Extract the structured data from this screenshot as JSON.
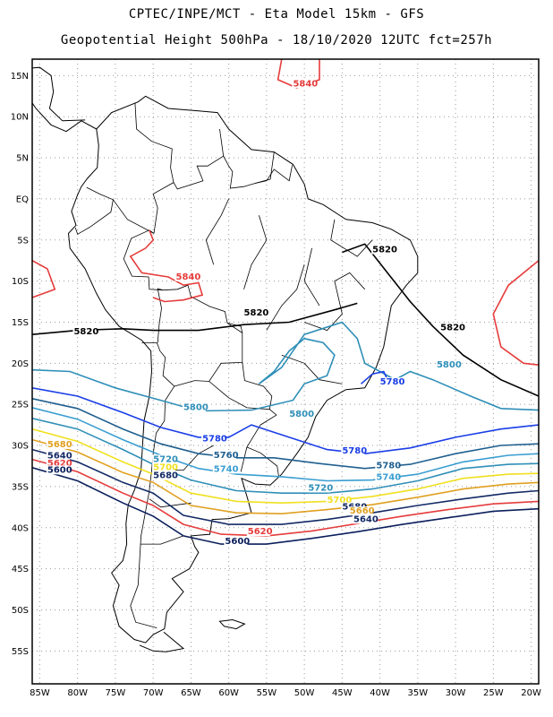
{
  "header": {
    "line1": "CPTEC/INPE/MCT -  Eta Model 15km - GFS",
    "line2": "Geopotential Height 500hPa - 18/10/2020 12UTC fct=257h"
  },
  "axes": {
    "lat_labels": [
      "15N",
      "10N",
      "5N",
      "EQ",
      "5S",
      "10S",
      "15S",
      "20S",
      "25S",
      "30S",
      "35S",
      "40S",
      "45S",
      "50S",
      "55S"
    ],
    "lat_values": [
      15,
      10,
      5,
      0,
      -5,
      -10,
      -15,
      -20,
      -25,
      -30,
      -35,
      -40,
      -45,
      -50,
      -55
    ],
    "lon_labels": [
      "85W",
      "80W",
      "75W",
      "70W",
      "65W",
      "60W",
      "55W",
      "50W",
      "45W",
      "40W",
      "35W",
      "30W",
      "25W",
      "20W"
    ],
    "lon_values": [
      -85,
      -80,
      -75,
      -70,
      -65,
      -60,
      -55,
      -50,
      -45,
      -40,
      -35,
      -30,
      -25,
      -20
    ],
    "lon_range": [
      -86,
      -19
    ],
    "lat_range": [
      -59,
      17
    ],
    "grid": "dotted"
  },
  "contour_levels": [
    {
      "value": 5840,
      "label": "5840",
      "color": "#e63c3c"
    },
    {
      "value": 5820,
      "label": "5820",
      "color": "#000000"
    },
    {
      "value": 5800,
      "label": "5800",
      "color": "#2f8fb8"
    },
    {
      "value": 5780,
      "label": "5780",
      "color": "#1a3ee6"
    },
    {
      "value": 5760,
      "label": "5760",
      "color": "#1f5f8f"
    },
    {
      "value": 5740,
      "label": "5740",
      "color": "#3a9ed1"
    },
    {
      "value": 5720,
      "label": "5720",
      "color": "#2f8fb8"
    },
    {
      "value": 5700,
      "label": "5700",
      "color": "#f0e020"
    },
    {
      "value": 5680,
      "label": "5680",
      "color": "#e0a020"
    },
    {
      "value": 5660,
      "label": "5660",
      "color": "#e0a020"
    },
    {
      "value": 5640,
      "label": "5640",
      "color": "#132a66"
    },
    {
      "value": 5620,
      "label": "5620",
      "color": "#e63c3c"
    },
    {
      "value": 5600,
      "label": "5600",
      "color": "#0a1f5c"
    }
  ],
  "contour_labels": [
    {
      "text": "5840",
      "lon": -51.5,
      "lat": 13.7,
      "color": "#e63c3c"
    },
    {
      "text": "5840",
      "lon": -67.0,
      "lat": -9.8,
      "color": "#e63c3c"
    },
    {
      "text": "5820",
      "lon": -41.0,
      "lat": -6.5,
      "color": "#000000"
    },
    {
      "text": "5820",
      "lon": -58.0,
      "lat": -14.2,
      "color": "#000000"
    },
    {
      "text": "5820",
      "lon": -80.5,
      "lat": -16.5,
      "color": "#000000"
    },
    {
      "text": "5820",
      "lon": -32.0,
      "lat": -16.0,
      "color": "#000000"
    },
    {
      "text": "5800",
      "lon": -32.5,
      "lat": -20.5,
      "color": "#2f8fb8"
    },
    {
      "text": "5800",
      "lon": -66.0,
      "lat": -25.7,
      "color": "#2f8fb8"
    },
    {
      "text": "5800",
      "lon": -52.0,
      "lat": -26.5,
      "color": "#2f8fb8"
    },
    {
      "text": "5780",
      "lon": -40.0,
      "lat": -22.6,
      "color": "#1a3ee6"
    },
    {
      "text": "5780",
      "lon": -63.5,
      "lat": -29.5,
      "color": "#1a3ee6"
    },
    {
      "text": "5780",
      "lon": -45.0,
      "lat": -31.0,
      "color": "#1a3ee6"
    },
    {
      "text": "5780",
      "lon": -40.5,
      "lat": -32.8,
      "color": "#1f5f8f"
    },
    {
      "text": "5760",
      "lon": -62.0,
      "lat": -31.5,
      "color": "#1f5f8f"
    },
    {
      "text": "5740",
      "lon": -62.0,
      "lat": -33.2,
      "color": "#3a9ed1"
    },
    {
      "text": "5740",
      "lon": -40.5,
      "lat": -34.2,
      "color": "#3a9ed1"
    },
    {
      "text": "5720",
      "lon": -70.0,
      "lat": -32.0,
      "color": "#2f8fb8"
    },
    {
      "text": "5720",
      "lon": -49.5,
      "lat": -35.5,
      "color": "#2f8fb8"
    },
    {
      "text": "5700",
      "lon": -70.0,
      "lat": -33.0,
      "color": "#f0e020"
    },
    {
      "text": "5700",
      "lon": -47.0,
      "lat": -37.0,
      "color": "#f0e020"
    },
    {
      "text": "5680",
      "lon": -70.0,
      "lat": -34.0,
      "color": "#132a66"
    },
    {
      "text": "5680",
      "lon": -45.0,
      "lat": -37.8,
      "color": "#132a66"
    },
    {
      "text": "5660",
      "lon": -44.0,
      "lat": -38.3,
      "color": "#e0a020"
    },
    {
      "text": "5640",
      "lon": -43.5,
      "lat": -39.3,
      "color": "#132a66"
    },
    {
      "text": "5680",
      "lon": -84.0,
      "lat": -30.2,
      "color": "#e0a020"
    },
    {
      "text": "5640",
      "lon": -84.0,
      "lat": -31.6,
      "color": "#132a66"
    },
    {
      "text": "5620",
      "lon": -84.0,
      "lat": -32.5,
      "color": "#e63c3c"
    },
    {
      "text": "5600",
      "lon": -84.0,
      "lat": -33.3,
      "color": "#0a1f5c"
    },
    {
      "text": "5620",
      "lon": -57.5,
      "lat": -40.8,
      "color": "#e63c3c"
    },
    {
      "text": "5600",
      "lon": -60.5,
      "lat": -42.0,
      "color": "#0a1f5c"
    }
  ]
}
